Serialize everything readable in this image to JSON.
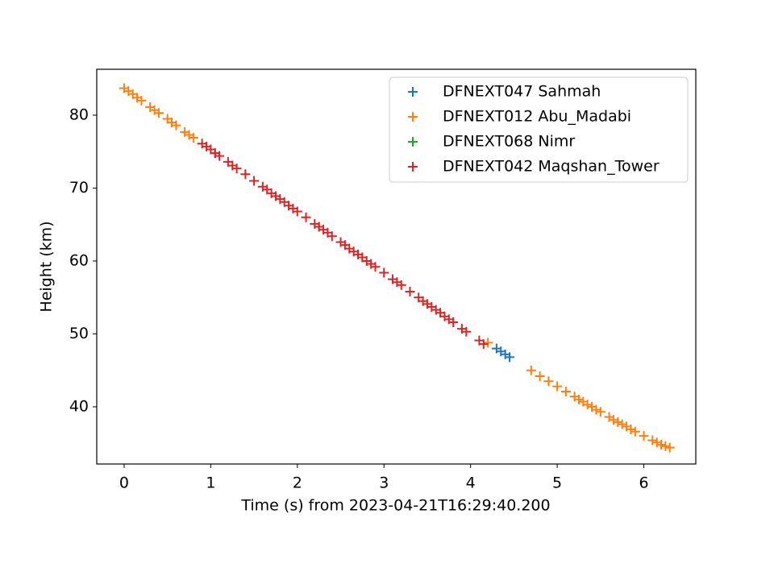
{
  "chart_data": {
    "type": "scatter",
    "x_label": "Time (s) from 2023-04-21T16:29:40.200",
    "y_label": "Height (km)",
    "xlim": [
      -0.316,
      6.6
    ],
    "ylim": [
      32.15,
      86.3
    ],
    "xticks": [
      0,
      1,
      2,
      3,
      4,
      5,
      6
    ],
    "yticks": [
      40,
      50,
      60,
      70,
      80
    ],
    "legend": "upper right",
    "series": [
      {
        "name": "DFNEXT047 Sahmah",
        "color": "#1f77b4",
        "x": [
          4.3,
          4.35,
          4.4,
          4.45
        ],
        "values": [
          48.0,
          47.6,
          47.2,
          46.8
        ]
      },
      {
        "name": "DFNEXT012 Abu_Madabi",
        "color": "#ff7f0e",
        "x": [
          0,
          0.05,
          0.1,
          0.15,
          0.2,
          0.3,
          0.35,
          0.4,
          0.5,
          0.55,
          0.6,
          0.7,
          0.75,
          0.8,
          4.2,
          4.7,
          4.8,
          4.9,
          5.0,
          5.1,
          5.2,
          5.25,
          5.3,
          5.35,
          5.4,
          5.45,
          5.5,
          5.6,
          5.65,
          5.7,
          5.75,
          5.8,
          5.85,
          5.9,
          6.0,
          6.1,
          6.15,
          6.2,
          6.25,
          6.3
        ],
        "values": [
          83.7,
          83.3,
          82.9,
          82.4,
          82.0,
          81.1,
          80.7,
          80.3,
          79.5,
          79.0,
          78.6,
          77.7,
          77.3,
          76.9,
          48.8,
          45.0,
          44.2,
          43.5,
          42.8,
          42.1,
          41.4,
          41.0,
          40.7,
          40.3,
          40.0,
          39.6,
          39.3,
          38.6,
          38.2,
          37.9,
          37.6,
          37.3,
          36.9,
          36.6,
          36.0,
          35.4,
          35.1,
          34.8,
          34.6,
          34.4
        ]
      },
      {
        "name": "DFNEXT068 Nimr",
        "color": "#2ca02c",
        "x": [
          1.05,
          2.25,
          2.75
        ],
        "values": [
          74.8,
          64.7,
          60.5
        ]
      },
      {
        "name": "DFNEXT042 Maqshan_Tower",
        "color": "#d62728",
        "x": [
          0.9,
          0.95,
          1.0,
          1.05,
          1.1,
          1.2,
          1.25,
          1.3,
          1.4,
          1.5,
          1.6,
          1.65,
          1.7,
          1.75,
          1.8,
          1.85,
          1.9,
          1.95,
          2.0,
          2.1,
          2.2,
          2.25,
          2.3,
          2.35,
          2.4,
          2.5,
          2.55,
          2.6,
          2.65,
          2.7,
          2.75,
          2.8,
          2.85,
          2.9,
          3.0,
          3.1,
          3.15,
          3.2,
          3.3,
          3.4,
          3.45,
          3.5,
          3.55,
          3.6,
          3.65,
          3.7,
          3.75,
          3.8,
          3.9,
          3.95,
          4.1,
          4.15
        ],
        "values": [
          76.1,
          75.7,
          75.3,
          74.8,
          74.4,
          73.6,
          73.1,
          72.7,
          71.9,
          71.0,
          70.2,
          69.8,
          69.3,
          68.9,
          68.5,
          68.1,
          67.6,
          67.2,
          66.8,
          66.0,
          65.1,
          64.7,
          64.3,
          63.9,
          63.4,
          62.6,
          62.2,
          61.7,
          61.3,
          60.9,
          60.5,
          60.0,
          59.6,
          59.2,
          58.4,
          57.5,
          57.1,
          56.7,
          55.8,
          55.0,
          54.5,
          54.1,
          53.7,
          53.3,
          52.9,
          52.4,
          52.0,
          51.6,
          50.7,
          50.3,
          49.1,
          48.6
        ]
      }
    ]
  }
}
